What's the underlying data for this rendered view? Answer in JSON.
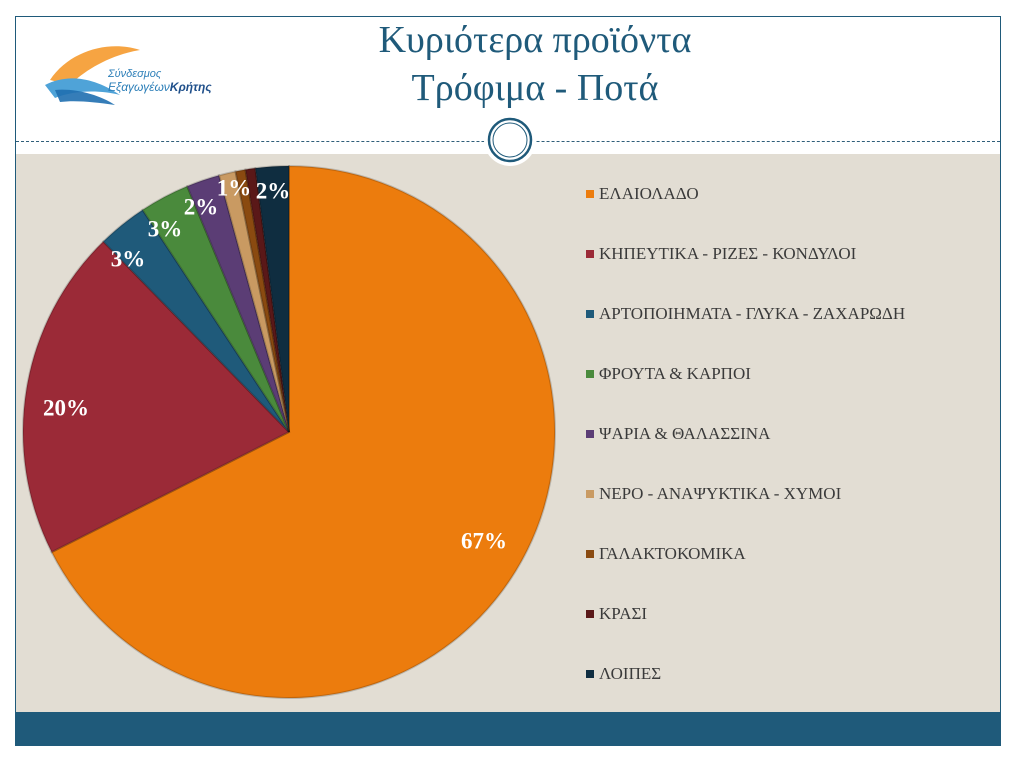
{
  "header": {
    "title_line1": "Κυριότερα προϊόντα",
    "title_line2": "Τρόφιμα - Ποτά",
    "logo_line1": "Σύνδεσμος",
    "logo_line2a": "Εξαγωγέων",
    "logo_line2b": "Κρήτης"
  },
  "colors": {
    "accent": "#1f5a7a",
    "background": "#e2ddd3"
  },
  "chart_data": {
    "type": "pie",
    "title": "Κυριότερα προϊόντα Τρόφιμα - Ποτά",
    "legend_position": "right",
    "categories": [
      "ΕΛΑΙΟΛΑΔΟ",
      "ΚΗΠΕΥΤΙΚΑ - ΡΙΖΕΣ - ΚΟΝΔΥΛΟΙ",
      "ΑΡΤΟΠΟΙΗΜΑΤΑ - ΓΛΥΚΑ - ΖΑΧΑΡΩΔΗ",
      "ΦΡΟΥΤΑ & ΚΑΡΠΟΙ",
      "ΨΑΡΙΑ & ΘΑΛΑΣΣΙΝΑ",
      "ΝΕΡΟ - ΑΝΑΨΥΚΤΙΚΑ - ΧΥΜΟΙ",
      "ΓΑΛΑΚΤΟΚΟΜΙΚΑ",
      "ΚΡΑΣΙ",
      "ΛΟΙΠΕΣ"
    ],
    "values": [
      67,
      20,
      3,
      3,
      2,
      1,
      0.6,
      0.6,
      2
    ],
    "labels": [
      "67%",
      "20%",
      "3%",
      "3%",
      "2%",
      "1%",
      "",
      "",
      "2%"
    ],
    "colors": [
      "#ec7c0d",
      "#9b2a37",
      "#1f5a7a",
      "#4a8a3c",
      "#5b3d75",
      "#c99a62",
      "#8a4a10",
      "#5a1818",
      "#0f2d40"
    ]
  }
}
